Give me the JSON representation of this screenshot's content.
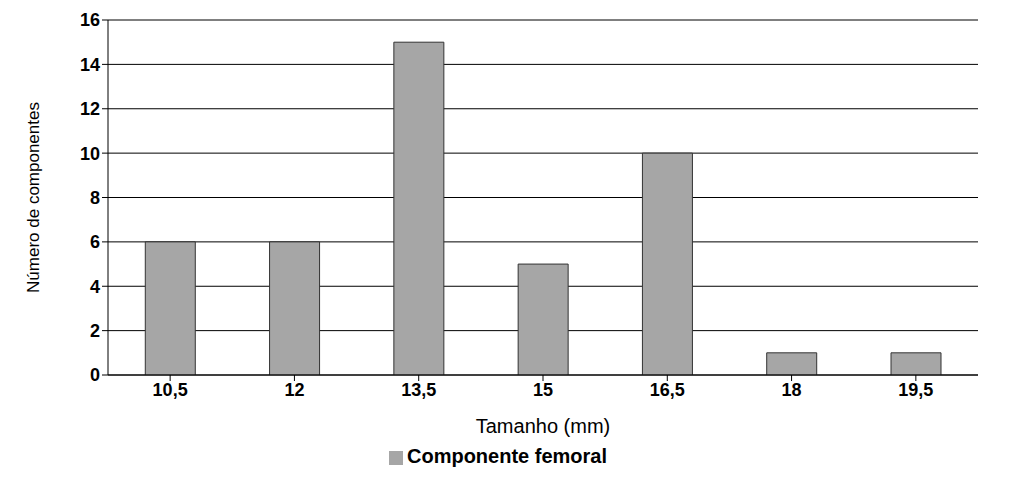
{
  "chart_data": {
    "type": "bar",
    "x_label": "Tamanho (mm)",
    "y_label": "Número de componentes",
    "categories": [
      "10,5",
      "12",
      "13,5",
      "15",
      "16,5",
      "18",
      "19,5"
    ],
    "series": [
      {
        "name": "Componente femoral",
        "color": "#a6a6a6",
        "values": [
          6,
          6,
          15,
          5,
          10,
          1,
          1
        ]
      }
    ],
    "ylim": [
      0,
      16
    ],
    "yticks": [
      0,
      2,
      4,
      6,
      8,
      10,
      12,
      14,
      16
    ],
    "grid": true,
    "legend": "bottom"
  }
}
